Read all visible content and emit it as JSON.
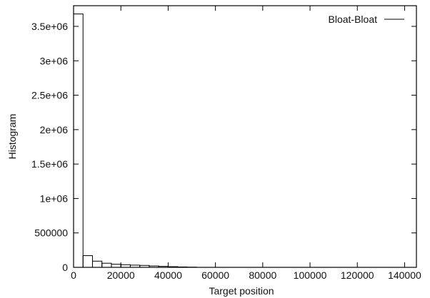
{
  "chart_data": {
    "type": "bar",
    "title": "",
    "xlabel": "Target position",
    "ylabel": "Histogram",
    "xlim": [
      0,
      145000
    ],
    "ylim": [
      0,
      3800000
    ],
    "xticks": [
      0,
      20000,
      40000,
      60000,
      80000,
      100000,
      120000,
      140000
    ],
    "xtick_labels": [
      "0",
      "20000",
      "40000",
      "60000",
      "80000",
      "100000",
      "120000",
      "140000"
    ],
    "yticks": [
      0,
      500000,
      1000000,
      1500000,
      2000000,
      2500000,
      3000000,
      3500000
    ],
    "ytick_labels": [
      "0",
      "500000",
      "1e+06",
      "1.5e+06",
      "2e+06",
      "2.5e+06",
      "3e+06",
      "3.5e+06"
    ],
    "grid": false,
    "legend_position": "top-right",
    "series": [
      {
        "name": "Bloat-Bloat",
        "bin_width": 4000,
        "x": [
          0,
          4000,
          8000,
          12000,
          16000,
          20000,
          24000,
          28000,
          32000,
          36000,
          40000,
          44000,
          48000
        ],
        "values": [
          3680000,
          170000,
          90000,
          60000,
          45000,
          38000,
          32000,
          28000,
          20000,
          14000,
          10000,
          6000,
          3000
        ]
      }
    ]
  }
}
